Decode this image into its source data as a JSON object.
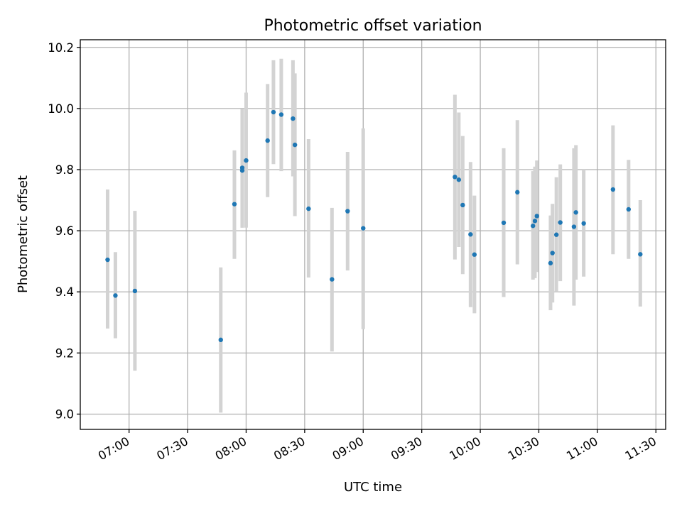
{
  "chart_data": {
    "type": "scatter",
    "title": "Photometric offset variation",
    "xlabel": "UTC time",
    "ylabel": "Photometric offset",
    "xlim": [
      "06:35",
      "11:35"
    ],
    "ylim": [
      8.95,
      10.225
    ],
    "x_ticks": [
      "07:00",
      "07:30",
      "08:00",
      "08:30",
      "09:00",
      "09:30",
      "10:00",
      "10:30",
      "11:00",
      "11:30"
    ],
    "y_ticks": [
      "9.0",
      "9.2",
      "9.4",
      "9.6",
      "9.8",
      "10.0",
      "10.2"
    ],
    "grid": true,
    "marker_color": "#1f77b4",
    "errorbar_color": "#d3d3d3",
    "points": [
      {
        "time": "06:49",
        "y": 9.505,
        "low": 9.28,
        "high": 9.735
      },
      {
        "time": "06:53",
        "y": 9.388,
        "low": 9.248,
        "high": 9.53
      },
      {
        "time": "07:03",
        "y": 9.403,
        "low": 9.142,
        "high": 9.665
      },
      {
        "time": "07:47",
        "y": 9.243,
        "low": 9.005,
        "high": 9.48
      },
      {
        "time": "07:54",
        "y": 9.687,
        "low": 9.508,
        "high": 9.863
      },
      {
        "time": "07:58",
        "y": 9.806,
        "low": 9.61,
        "high": 9.998
      },
      {
        "time": "07:58",
        "y": 9.797,
        "low": 9.61,
        "high": 9.99
      },
      {
        "time": "08:00",
        "y": 9.83,
        "low": 9.61,
        "high": 10.052
      },
      {
        "time": "08:11",
        "y": 9.895,
        "low": 9.71,
        "high": 10.08
      },
      {
        "time": "08:14",
        "y": 9.988,
        "low": 9.818,
        "high": 10.158
      },
      {
        "time": "08:18",
        "y": 9.98,
        "low": 9.795,
        "high": 10.163
      },
      {
        "time": "08:24",
        "y": 9.967,
        "low": 9.778,
        "high": 10.158
      },
      {
        "time": "08:25",
        "y": 9.881,
        "low": 9.648,
        "high": 10.115
      },
      {
        "time": "08:32",
        "y": 9.672,
        "low": 9.447,
        "high": 9.9
      },
      {
        "time": "08:44",
        "y": 9.441,
        "low": 9.205,
        "high": 9.675
      },
      {
        "time": "08:52",
        "y": 9.664,
        "low": 9.47,
        "high": 9.858
      },
      {
        "time": "09:00",
        "y": 9.608,
        "low": 9.278,
        "high": 9.935
      },
      {
        "time": "09:47",
        "y": 9.776,
        "low": 9.506,
        "high": 10.045
      },
      {
        "time": "09:49",
        "y": 9.767,
        "low": 9.547,
        "high": 9.987
      },
      {
        "time": "09:51",
        "y": 9.684,
        "low": 9.458,
        "high": 9.91
      },
      {
        "time": "09:55",
        "y": 9.588,
        "low": 9.35,
        "high": 9.825
      },
      {
        "time": "09:57",
        "y": 9.522,
        "low": 9.33,
        "high": 9.715
      },
      {
        "time": "10:12",
        "y": 9.626,
        "low": 9.383,
        "high": 9.87
      },
      {
        "time": "10:19",
        "y": 9.726,
        "low": 9.49,
        "high": 9.962
      },
      {
        "time": "10:27",
        "y": 9.616,
        "low": 9.44,
        "high": 9.795
      },
      {
        "time": "10:28",
        "y": 9.632,
        "low": 9.445,
        "high": 9.81
      },
      {
        "time": "10:29",
        "y": 9.648,
        "low": 9.465,
        "high": 9.83
      },
      {
        "time": "10:36",
        "y": 9.494,
        "low": 9.34,
        "high": 9.65
      },
      {
        "time": "10:37",
        "y": 9.527,
        "low": 9.365,
        "high": 9.688
      },
      {
        "time": "10:39",
        "y": 9.587,
        "low": 9.4,
        "high": 9.775
      },
      {
        "time": "10:41",
        "y": 9.627,
        "low": 9.435,
        "high": 9.817
      },
      {
        "time": "10:48",
        "y": 9.613,
        "low": 9.355,
        "high": 9.87
      },
      {
        "time": "10:49",
        "y": 9.66,
        "low": 9.44,
        "high": 9.88
      },
      {
        "time": "10:53",
        "y": 9.624,
        "low": 9.45,
        "high": 9.8
      },
      {
        "time": "11:08",
        "y": 9.735,
        "low": 9.523,
        "high": 9.945
      },
      {
        "time": "11:16",
        "y": 9.67,
        "low": 9.508,
        "high": 9.832
      },
      {
        "time": "11:22",
        "y": 9.523,
        "low": 9.352,
        "high": 9.7
      }
    ]
  }
}
